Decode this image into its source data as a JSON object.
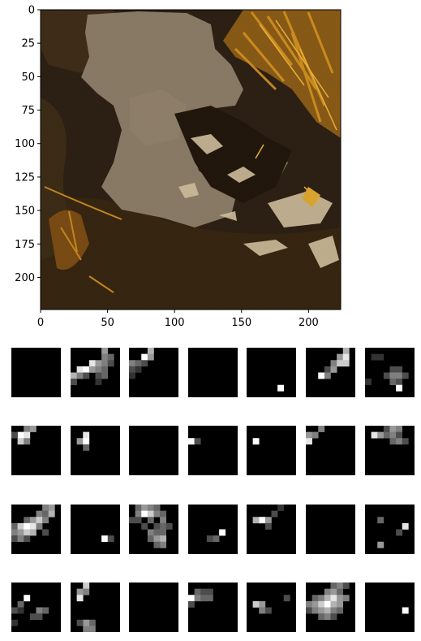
{
  "main_image": {
    "description_free": true,
    "x_ticks": [
      "0",
      "50",
      "100",
      "150",
      "200"
    ],
    "y_ticks": [
      "0",
      "25",
      "50",
      "75",
      "100",
      "125",
      "150",
      "175",
      "200"
    ],
    "xlim": [
      0,
      224
    ],
    "ylim": [
      224,
      0
    ],
    "colors": {
      "dark_soil": "#2a1d12",
      "grey_patch": "#8b7c68",
      "straw": "#c98a1c",
      "light_speck": "#d4c2a0"
    }
  },
  "feature_maps": {
    "rows": 4,
    "cols": 7,
    "grid_size": 8,
    "cells": [
      [],
      [
        [
          5,
          0,
          0.6
        ],
        [
          5,
          1,
          0.5
        ],
        [
          6,
          1,
          0.4
        ],
        [
          3,
          2,
          0.9
        ],
        [
          4,
          2,
          0.6
        ],
        [
          5,
          2,
          0.5
        ],
        [
          6,
          2,
          0.3
        ],
        [
          1,
          3,
          0.9
        ],
        [
          2,
          3,
          1.0
        ],
        [
          3,
          3,
          0.6
        ],
        [
          4,
          3,
          0.5
        ],
        [
          5,
          3,
          0.4
        ],
        [
          0,
          4,
          0.7
        ],
        [
          1,
          4,
          0.5
        ],
        [
          2,
          4,
          0.3
        ],
        [
          4,
          4,
          0.3
        ],
        [
          5,
          4,
          0.4
        ],
        [
          0,
          5,
          0.3
        ],
        [
          4,
          5,
          0.2
        ]
      ],
      [
        [
          3,
          0,
          0.7
        ],
        [
          2,
          1,
          1.0
        ],
        [
          3,
          1,
          0.6
        ],
        [
          0,
          2,
          0.5
        ],
        [
          1,
          2,
          0.4
        ],
        [
          2,
          2,
          0.3
        ],
        [
          0,
          3,
          0.3
        ],
        [
          1,
          3,
          0.2
        ],
        [
          0,
          4,
          0.2
        ]
      ],
      [],
      [
        [
          5,
          6,
          1.0
        ]
      ],
      [
        [
          6,
          0,
          0.7
        ],
        [
          5,
          1,
          0.6
        ],
        [
          6,
          1,
          0.9
        ],
        [
          4,
          2,
          0.5
        ],
        [
          5,
          2,
          0.8
        ],
        [
          6,
          2,
          0.8
        ],
        [
          3,
          3,
          0.3
        ],
        [
          4,
          3,
          0.6
        ],
        [
          2,
          4,
          1.0
        ],
        [
          3,
          4,
          0.5
        ]
      ],
      [
        [
          1,
          1,
          0.2
        ],
        [
          2,
          1,
          0.2
        ],
        [
          4,
          3,
          0.3
        ],
        [
          5,
          3,
          0.3
        ],
        [
          3,
          4,
          0.3
        ],
        [
          4,
          4,
          0.5
        ],
        [
          5,
          4,
          0.5
        ],
        [
          6,
          4,
          0.3
        ],
        [
          0,
          5,
          0.2
        ],
        [
          4,
          5,
          0.4
        ],
        [
          5,
          5,
          0.3
        ],
        [
          5,
          6,
          1.0
        ]
      ],
      [
        [
          2,
          0,
          0.5
        ],
        [
          3,
          0,
          0.6
        ],
        [
          1,
          1,
          1.0
        ],
        [
          2,
          1,
          0.9
        ],
        [
          0,
          1,
          0.3
        ],
        [
          1,
          2,
          0.8
        ],
        [
          2,
          2,
          0.5
        ]
      ],
      [
        [
          2,
          1,
          0.9
        ],
        [
          1,
          2,
          0.6
        ],
        [
          2,
          2,
          1.0
        ],
        [
          2,
          3,
          0.4
        ]
      ],
      [],
      [
        [
          0,
          2,
          1.0
        ],
        [
          1,
          2,
          0.3
        ]
      ],
      [
        [
          1,
          2,
          1.0
        ]
      ],
      [
        [
          2,
          0,
          0.5
        ],
        [
          0,
          1,
          0.6
        ],
        [
          1,
          1,
          0.5
        ],
        [
          0,
          2,
          0.9
        ]
      ],
      [
        [
          3,
          0,
          0.3
        ],
        [
          4,
          0,
          0.6
        ],
        [
          5,
          0,
          0.5
        ],
        [
          1,
          1,
          0.9
        ],
        [
          2,
          1,
          0.6
        ],
        [
          3,
          1,
          0.4
        ],
        [
          4,
          1,
          0.5
        ],
        [
          5,
          1,
          0.3
        ],
        [
          4,
          2,
          0.4
        ],
        [
          5,
          2,
          0.5
        ],
        [
          6,
          2,
          0.3
        ]
      ],
      [
        [
          6,
          0,
          0.6
        ],
        [
          5,
          0,
          0.5
        ],
        [
          4,
          1,
          0.5
        ],
        [
          5,
          1,
          0.4
        ],
        [
          6,
          1,
          0.7
        ],
        [
          2,
          2,
          0.4
        ],
        [
          3,
          2,
          0.6
        ],
        [
          4,
          2,
          0.8
        ],
        [
          5,
          2,
          0.5
        ],
        [
          0,
          3,
          0.4
        ],
        [
          1,
          3,
          0.8
        ],
        [
          2,
          3,
          1.0
        ],
        [
          3,
          3,
          0.9
        ],
        [
          4,
          3,
          0.5
        ],
        [
          0,
          4,
          0.5
        ],
        [
          1,
          4,
          0.6
        ],
        [
          2,
          4,
          0.8
        ],
        [
          3,
          4,
          0.7
        ],
        [
          5,
          4,
          0.3
        ],
        [
          0,
          5,
          0.3
        ],
        [
          1,
          5,
          0.5
        ],
        [
          2,
          5,
          0.3
        ]
      ],
      [
        [
          5,
          5,
          1.0
        ],
        [
          6,
          5,
          0.3
        ]
      ],
      [
        [
          1,
          0,
          0.4
        ],
        [
          2,
          0,
          0.6
        ],
        [
          3,
          0,
          0.5
        ],
        [
          4,
          0,
          0.4
        ],
        [
          1,
          1,
          0.5
        ],
        [
          2,
          1,
          1.0
        ],
        [
          3,
          1,
          0.8
        ],
        [
          4,
          1,
          0.5
        ],
        [
          5,
          1,
          0.4
        ],
        [
          0,
          2,
          0.3
        ],
        [
          1,
          2,
          0.3
        ],
        [
          3,
          2,
          0.4
        ],
        [
          5,
          2,
          0.5
        ],
        [
          2,
          3,
          0.3
        ],
        [
          4,
          3,
          0.3
        ],
        [
          5,
          3,
          0.4
        ],
        [
          6,
          3,
          0.3
        ],
        [
          3,
          4,
          0.5
        ],
        [
          4,
          4,
          0.4
        ],
        [
          5,
          4,
          0.4
        ],
        [
          3,
          5,
          0.4
        ],
        [
          4,
          5,
          0.6
        ],
        [
          5,
          5,
          0.7
        ],
        [
          5,
          6,
          0.5
        ],
        [
          4,
          6,
          0.4
        ]
      ],
      [
        [
          5,
          4,
          1.0
        ],
        [
          4,
          5,
          0.4
        ],
        [
          3,
          5,
          0.3
        ]
      ],
      [
        [
          2,
          2,
          1.0
        ],
        [
          1,
          2,
          0.7
        ],
        [
          3,
          2,
          0.6
        ],
        [
          4,
          1,
          0.3
        ],
        [
          3,
          3,
          0.3
        ],
        [
          5,
          0,
          0.2
        ]
      ],
      [],
      [
        [
          2,
          2,
          0.4
        ],
        [
          6,
          3,
          0.9
        ],
        [
          5,
          4,
          0.3
        ],
        [
          2,
          6,
          0.6
        ]
      ],
      [
        [
          2,
          2,
          1.0
        ],
        [
          1,
          3,
          0.4
        ],
        [
          0,
          4,
          0.3
        ],
        [
          4,
          4,
          0.5
        ],
        [
          5,
          4,
          0.4
        ],
        [
          1,
          4,
          0.2
        ],
        [
          3,
          5,
          0.3
        ],
        [
          4,
          5,
          0.3
        ],
        [
          0,
          6,
          0.2
        ]
      ],
      [
        [
          2,
          0,
          0.8
        ],
        [
          1,
          1,
          0.6
        ],
        [
          2,
          1,
          0.5
        ],
        [
          1,
          2,
          0.9
        ],
        [
          2,
          7,
          0.5
        ],
        [
          3,
          6,
          0.4
        ],
        [
          2,
          6,
          0.6
        ],
        [
          3,
          7,
          0.5
        ],
        [
          1,
          6,
          0.3
        ]
      ],
      [],
      [
        [
          1,
          1,
          0.4
        ],
        [
          2,
          1,
          0.3
        ],
        [
          3,
          1,
          0.3
        ],
        [
          0,
          2,
          1.0
        ],
        [
          1,
          2,
          0.5
        ],
        [
          2,
          2,
          0.4
        ],
        [
          3,
          2,
          0.4
        ],
        [
          0,
          3,
          0.3
        ]
      ],
      [
        [
          1,
          3,
          0.8
        ],
        [
          2,
          3,
          0.6
        ],
        [
          2,
          4,
          0.5
        ],
        [
          3,
          4,
          0.3
        ],
        [
          6,
          2,
          0.3
        ]
      ],
      [
        [
          4,
          0,
          0.4
        ],
        [
          5,
          0,
          0.5
        ],
        [
          6,
          0,
          0.3
        ],
        [
          3,
          1,
          0.5
        ],
        [
          4,
          1,
          0.6
        ],
        [
          5,
          1,
          0.4
        ],
        [
          1,
          2,
          0.4
        ],
        [
          2,
          2,
          0.5
        ],
        [
          3,
          2,
          0.7
        ],
        [
          4,
          2,
          0.9
        ],
        [
          5,
          2,
          0.6
        ],
        [
          6,
          2,
          0.5
        ],
        [
          0,
          3,
          0.5
        ],
        [
          1,
          3,
          0.6
        ],
        [
          2,
          3,
          0.8
        ],
        [
          3,
          3,
          1.0
        ],
        [
          4,
          3,
          0.7
        ],
        [
          5,
          3,
          0.6
        ],
        [
          0,
          4,
          0.3
        ],
        [
          1,
          4,
          0.5
        ],
        [
          2,
          4,
          0.6
        ],
        [
          3,
          4,
          0.7
        ],
        [
          4,
          4,
          0.5
        ],
        [
          5,
          4,
          0.4
        ],
        [
          2,
          5,
          0.4
        ],
        [
          3,
          5,
          0.5
        ],
        [
          4,
          5,
          0.3
        ]
      ],
      [
        [
          6,
          4,
          1.0
        ]
      ]
    ]
  }
}
